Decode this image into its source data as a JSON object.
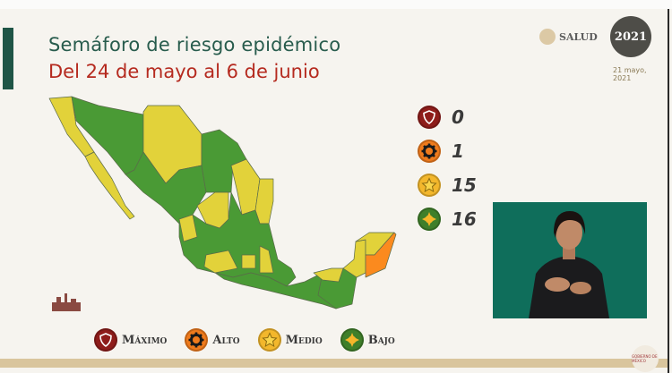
{
  "header": {
    "title": "Semáforo de riesgo epidémico",
    "subtitle": "Del 24 de mayo al 6 de junio"
  },
  "branding": {
    "salud_logo": "SALUD",
    "year_logo": "2021",
    "date_line1": "21 mayo,",
    "date_line2": "2021",
    "footer_logo": "GOBIERNO DE MÉXICO"
  },
  "counts": [
    {
      "level": "maximo",
      "icon": "shield-icon",
      "color": "#8e1c1a",
      "value": "0"
    },
    {
      "level": "alto",
      "icon": "gear-icon",
      "color": "#f07b1c",
      "value": "1"
    },
    {
      "level": "medio",
      "icon": "star-icon",
      "color": "#f3b72c",
      "value": "15"
    },
    {
      "level": "bajo",
      "icon": "sun-icon",
      "color": "#3f7f2a",
      "value": "16"
    }
  ],
  "legend": [
    {
      "label": "Máximo",
      "icon": "shield-icon",
      "color": "#8e1c1a"
    },
    {
      "label": "Alto",
      "icon": "gear-icon",
      "color": "#f07b1c"
    },
    {
      "label": "Medio",
      "icon": "star-icon",
      "color": "#f3b72c"
    },
    {
      "label": "Bajo",
      "icon": "sun-icon",
      "color": "#3f7f2a"
    }
  ],
  "map_colors": {
    "bajo": "#4a9a35",
    "medio": "#e2d23a",
    "alto": "#fb8a1e",
    "border": "#5a6a4a"
  },
  "accent": {
    "title_green": "#285c4d",
    "subtitle_red": "#b52a1f"
  }
}
